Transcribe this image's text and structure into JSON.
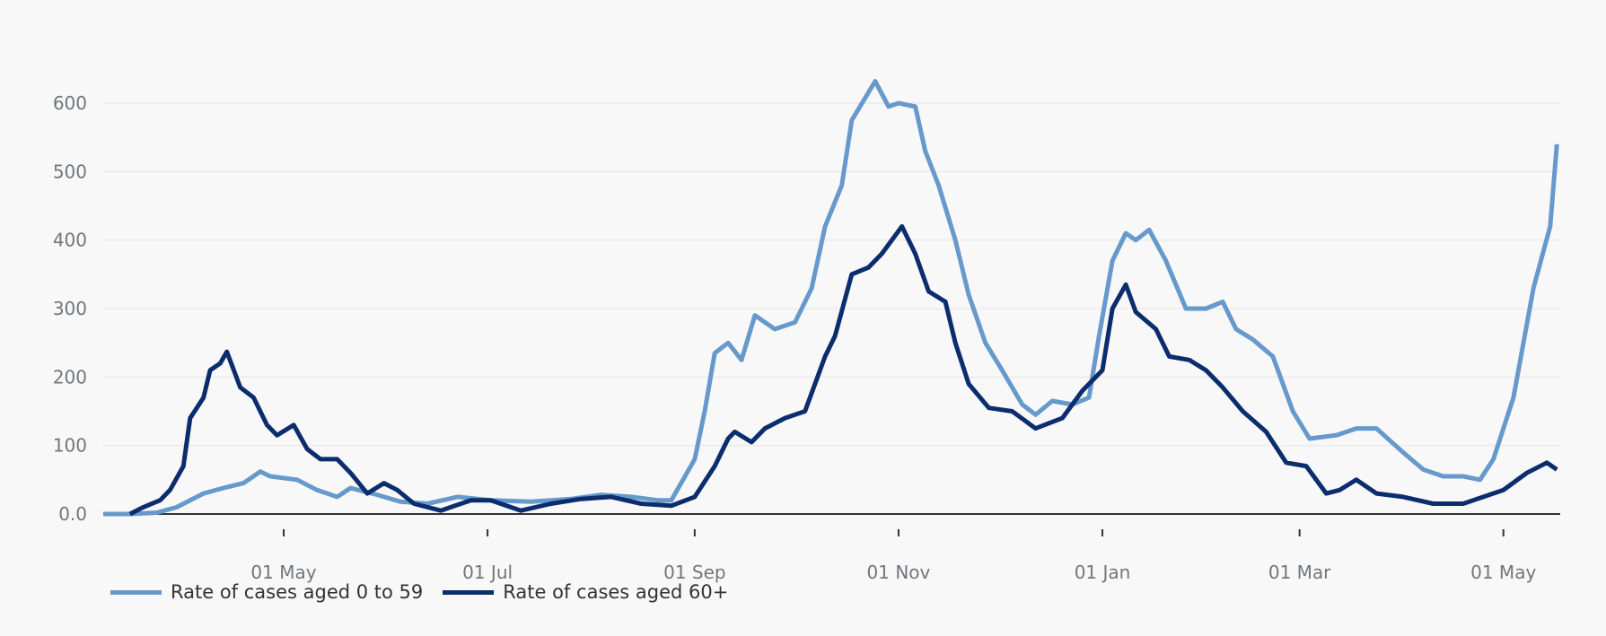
{
  "chart_data": {
    "type": "line",
    "title": "",
    "xlabel": "",
    "ylabel": "",
    "xlim": [
      "2020-03-08",
      "2021-05-18"
    ],
    "ylim": [
      0,
      600
    ],
    "grid": true,
    "legend_position": "bottom-left",
    "y_ticks": [
      "0.0",
      "100",
      "200",
      "300",
      "400",
      "500",
      "600"
    ],
    "x_ticks": [
      {
        "date": "2020-05-01",
        "label": "01 May"
      },
      {
        "date": "2020-07-01",
        "label": "01 Jul"
      },
      {
        "date": "2020-09-01",
        "label": "01 Sep"
      },
      {
        "date": "2020-11-01",
        "label": "01 Nov"
      },
      {
        "date": "2021-01-01",
        "label": "01 Jan"
      },
      {
        "date": "2021-03-01",
        "label": "01 Mar"
      },
      {
        "date": "2021-05-01",
        "label": "01 May"
      }
    ],
    "series": [
      {
        "name": "Rate of cases aged 0 to 59",
        "color": "#6699cc",
        "points": [
          [
            "2020-03-08",
            0
          ],
          [
            "2020-03-16",
            0
          ],
          [
            "2020-03-24",
            2
          ],
          [
            "2020-03-30",
            10
          ],
          [
            "2020-04-07",
            30
          ],
          [
            "2020-04-13",
            38
          ],
          [
            "2020-04-19",
            45
          ],
          [
            "2020-04-24",
            62
          ],
          [
            "2020-04-27",
            55
          ],
          [
            "2020-05-05",
            50
          ],
          [
            "2020-05-11",
            35
          ],
          [
            "2020-05-17",
            25
          ],
          [
            "2020-05-21",
            38
          ],
          [
            "2020-05-29",
            28
          ],
          [
            "2020-06-05",
            18
          ],
          [
            "2020-06-13",
            15
          ],
          [
            "2020-06-22",
            25
          ],
          [
            "2020-07-02",
            20
          ],
          [
            "2020-07-14",
            18
          ],
          [
            "2020-07-26",
            22
          ],
          [
            "2020-08-04",
            28
          ],
          [
            "2020-08-13",
            25
          ],
          [
            "2020-08-21",
            20
          ],
          [
            "2020-08-25",
            20
          ],
          [
            "2020-09-01",
            80
          ],
          [
            "2020-09-04",
            150
          ],
          [
            "2020-09-07",
            235
          ],
          [
            "2020-09-11",
            250
          ],
          [
            "2020-09-15",
            225
          ],
          [
            "2020-09-19",
            290
          ],
          [
            "2020-09-25",
            270
          ],
          [
            "2020-10-01",
            280
          ],
          [
            "2020-10-06",
            330
          ],
          [
            "2020-10-10",
            420
          ],
          [
            "2020-10-15",
            480
          ],
          [
            "2020-10-18",
            575
          ],
          [
            "2020-10-25",
            632
          ],
          [
            "2020-10-29",
            595
          ],
          [
            "2020-11-01",
            600
          ],
          [
            "2020-11-06",
            595
          ],
          [
            "2020-11-09",
            530
          ],
          [
            "2020-11-13",
            480
          ],
          [
            "2020-11-18",
            400
          ],
          [
            "2020-11-22",
            320
          ],
          [
            "2020-11-27",
            250
          ],
          [
            "2020-12-02",
            210
          ],
          [
            "2020-12-08",
            160
          ],
          [
            "2020-12-12",
            145
          ],
          [
            "2020-12-17",
            165
          ],
          [
            "2020-12-23",
            160
          ],
          [
            "2020-12-28",
            170
          ],
          [
            "2020-12-31",
            260
          ],
          [
            "2021-01-04",
            370
          ],
          [
            "2021-01-08",
            410
          ],
          [
            "2021-01-11",
            400
          ],
          [
            "2021-01-15",
            415
          ],
          [
            "2021-01-20",
            370
          ],
          [
            "2021-01-26",
            300
          ],
          [
            "2021-02-01",
            300
          ],
          [
            "2021-02-06",
            310
          ],
          [
            "2021-02-10",
            270
          ],
          [
            "2021-02-15",
            255
          ],
          [
            "2021-02-21",
            230
          ],
          [
            "2021-02-27",
            150
          ],
          [
            "2021-03-04",
            110
          ],
          [
            "2021-03-12",
            115
          ],
          [
            "2021-03-18",
            125
          ],
          [
            "2021-03-24",
            125
          ],
          [
            "2021-04-01",
            90
          ],
          [
            "2021-04-07",
            65
          ],
          [
            "2021-04-13",
            55
          ],
          [
            "2021-04-19",
            55
          ],
          [
            "2021-04-24",
            50
          ],
          [
            "2021-04-28",
            80
          ],
          [
            "2021-05-04",
            170
          ],
          [
            "2021-05-10",
            330
          ],
          [
            "2021-05-15",
            420
          ],
          [
            "2021-05-17",
            540
          ]
        ]
      },
      {
        "name": "Rate of cases aged 60+",
        "color": "#0b2d6e",
        "points": [
          [
            "2020-03-16",
            0
          ],
          [
            "2020-03-20",
            10
          ],
          [
            "2020-03-25",
            20
          ],
          [
            "2020-03-28",
            35
          ],
          [
            "2020-04-01",
            70
          ],
          [
            "2020-04-03",
            140
          ],
          [
            "2020-04-07",
            170
          ],
          [
            "2020-04-09",
            210
          ],
          [
            "2020-04-12",
            220
          ],
          [
            "2020-04-14",
            237
          ],
          [
            "2020-04-18",
            185
          ],
          [
            "2020-04-22",
            170
          ],
          [
            "2020-04-26",
            130
          ],
          [
            "2020-04-29",
            115
          ],
          [
            "2020-05-04",
            130
          ],
          [
            "2020-05-08",
            95
          ],
          [
            "2020-05-12",
            80
          ],
          [
            "2020-05-17",
            80
          ],
          [
            "2020-05-21",
            60
          ],
          [
            "2020-05-26",
            30
          ],
          [
            "2020-05-31",
            45
          ],
          [
            "2020-06-04",
            35
          ],
          [
            "2020-06-09",
            15
          ],
          [
            "2020-06-17",
            5
          ],
          [
            "2020-06-26",
            20
          ],
          [
            "2020-07-02",
            20
          ],
          [
            "2020-07-11",
            5
          ],
          [
            "2020-07-20",
            15
          ],
          [
            "2020-07-29",
            22
          ],
          [
            "2020-08-07",
            25
          ],
          [
            "2020-08-16",
            15
          ],
          [
            "2020-08-25",
            12
          ],
          [
            "2020-09-01",
            25
          ],
          [
            "2020-09-07",
            70
          ],
          [
            "2020-09-11",
            110
          ],
          [
            "2020-09-13",
            120
          ],
          [
            "2020-09-18",
            105
          ],
          [
            "2020-09-22",
            125
          ],
          [
            "2020-09-28",
            140
          ],
          [
            "2020-10-04",
            150
          ],
          [
            "2020-10-10",
            230
          ],
          [
            "2020-10-13",
            260
          ],
          [
            "2020-10-18",
            350
          ],
          [
            "2020-10-23",
            360
          ],
          [
            "2020-10-27",
            380
          ],
          [
            "2020-11-02",
            420
          ],
          [
            "2020-11-06",
            380
          ],
          [
            "2020-11-10",
            325
          ],
          [
            "2020-11-15",
            310
          ],
          [
            "2020-11-18",
            250
          ],
          [
            "2020-11-22",
            190
          ],
          [
            "2020-11-28",
            155
          ],
          [
            "2020-12-05",
            150
          ],
          [
            "2020-12-12",
            125
          ],
          [
            "2020-12-20",
            140
          ],
          [
            "2020-12-26",
            180
          ],
          [
            "2021-01-01",
            210
          ],
          [
            "2021-01-04",
            300
          ],
          [
            "2021-01-08",
            335
          ],
          [
            "2021-01-11",
            295
          ],
          [
            "2021-01-17",
            270
          ],
          [
            "2021-01-21",
            230
          ],
          [
            "2021-01-27",
            225
          ],
          [
            "2021-02-01",
            210
          ],
          [
            "2021-02-06",
            185
          ],
          [
            "2021-02-12",
            150
          ],
          [
            "2021-02-19",
            120
          ],
          [
            "2021-02-25",
            75
          ],
          [
            "2021-03-03",
            70
          ],
          [
            "2021-03-09",
            30
          ],
          [
            "2021-03-13",
            35
          ],
          [
            "2021-03-18",
            50
          ],
          [
            "2021-03-24",
            30
          ],
          [
            "2021-04-01",
            25
          ],
          [
            "2021-04-10",
            15
          ],
          [
            "2021-04-19",
            15
          ],
          [
            "2021-04-25",
            25
          ],
          [
            "2021-05-01",
            35
          ],
          [
            "2021-05-08",
            60
          ],
          [
            "2021-05-14",
            75
          ],
          [
            "2021-05-17",
            65
          ]
        ]
      }
    ]
  }
}
